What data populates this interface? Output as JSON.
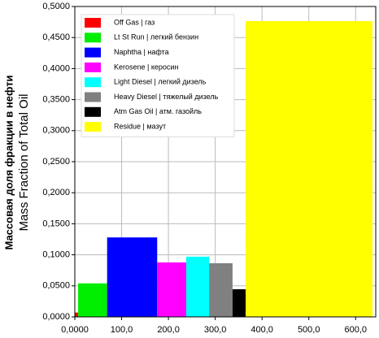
{
  "chart_data": {
    "type": "histogram",
    "y_axis_labels": [
      "Массовая доля фракции в нефти",
      "Mass Fraction of Total Oil"
    ],
    "categories": [
      "Off Gas | газ",
      "Lt St Run | легкий бензин",
      "Naphtha | нафта",
      "Kerosene | керосин",
      "Light Diesel | легкий дизель",
      "Heavy Diesel | тяжелый дизель",
      "Atm Gas Oil | атм. газойль",
      "Residue | мазут"
    ],
    "colors": [
      "#ff0000",
      "#00ee00",
      "#0000ff",
      "#ff00ff",
      "#00ffff",
      "#808080",
      "#000000",
      "#ffff00"
    ],
    "bins": [
      0,
      7,
      69,
      176,
      238,
      287,
      337,
      365,
      636
    ],
    "values": [
      0.007,
      0.054,
      0.128,
      0.0877,
      0.097,
      0.0864,
      0.0445,
      0.4765
    ],
    "xlim": [
      0,
      643
    ],
    "xticks": [
      {
        "value": 0,
        "label": "0,0000"
      },
      {
        "value": 100,
        "label": "100,0"
      },
      {
        "value": 200,
        "label": "200,0"
      },
      {
        "value": 300,
        "label": "300,0"
      },
      {
        "value": 400,
        "label": "400,0"
      },
      {
        "value": 500,
        "label": "500,0"
      },
      {
        "value": 600,
        "label": "600,0"
      }
    ],
    "ylim": [
      0,
      0.5
    ],
    "yticks": [
      {
        "value": 0,
        "label": "0,0000"
      },
      {
        "value": 0.05,
        "label": "0,0500"
      },
      {
        "value": 0.1,
        "label": "0,1000"
      },
      {
        "value": 0.15,
        "label": "0,1500"
      },
      {
        "value": 0.2,
        "label": "0,2000"
      },
      {
        "value": 0.25,
        "label": "0,2500"
      },
      {
        "value": 0.3,
        "label": "0,3000"
      },
      {
        "value": 0.35,
        "label": "0,3500"
      },
      {
        "value": 0.4,
        "label": "0,4000"
      },
      {
        "value": 0.45,
        "label": "0,4500"
      },
      {
        "value": 0.5,
        "label": "0,5000"
      }
    ],
    "grid": true
  }
}
